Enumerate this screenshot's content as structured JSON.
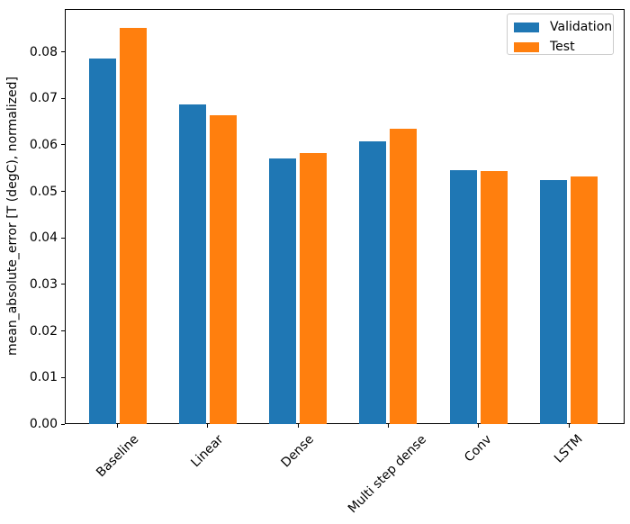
{
  "chart_data": {
    "type": "bar",
    "title": "",
    "xlabel": "",
    "ylabel": "mean_absolute_error [T (degC), normalized]",
    "categories": [
      "Baseline",
      "Linear",
      "Dense",
      "Multi step dense",
      "Conv",
      "LSTM"
    ],
    "series": [
      {
        "name": "Validation",
        "color": "#1f77b4",
        "values": [
          0.0786,
          0.0686,
          0.0571,
          0.0608,
          0.0546,
          0.0525
        ]
      },
      {
        "name": "Test",
        "color": "#ff7f0e",
        "values": [
          0.0852,
          0.0663,
          0.0583,
          0.0635,
          0.0544,
          0.0532
        ]
      }
    ],
    "ylim": [
      0,
      0.0892
    ],
    "yticks": [
      0.0,
      0.01,
      0.02,
      0.03,
      0.04,
      0.05,
      0.06,
      0.07,
      0.08
    ],
    "ytick_labels": [
      "0.00",
      "0.01",
      "0.02",
      "0.03",
      "0.04",
      "0.05",
      "0.06",
      "0.07",
      "0.08"
    ],
    "xtick_rotation_deg": 45,
    "grid": false,
    "legend": {
      "position": "upper right",
      "entries": [
        "Validation",
        "Test"
      ]
    }
  },
  "colors": {
    "validation": "#1f77b4",
    "test": "#ff7f0e",
    "spine": "#000000",
    "legend_border": "#cccccc",
    "background": "#ffffff"
  }
}
